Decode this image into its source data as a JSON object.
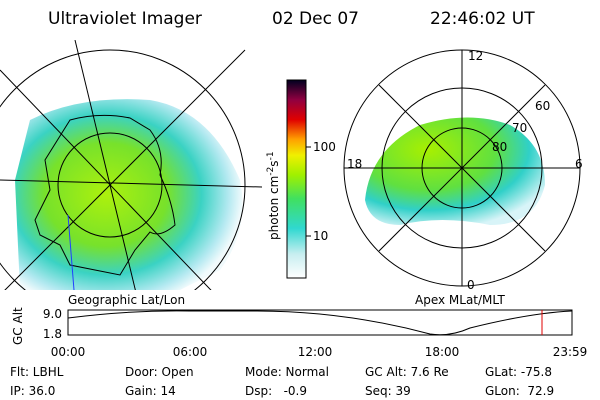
{
  "header": {
    "instrument": "Ultraviolet Imager",
    "date": "02 Dec 07",
    "time": "22:46:02 UT"
  },
  "left_map": {
    "label": "Geographic Lat/Lon"
  },
  "colorbar": {
    "unit": "photon cm",
    "exp1": "-2",
    "unit2": "s",
    "exp2": "-1",
    "ticks": [
      "100",
      "10"
    ]
  },
  "right_map": {
    "label": "Apex MLat/MLT",
    "mlt": [
      "12",
      "18",
      "6",
      "0"
    ],
    "mlat": [
      "60",
      "70",
      "80"
    ]
  },
  "orbit": {
    "axis_label": "GC Alt",
    "yticks": [
      "9.0",
      "1.8"
    ],
    "xticks": [
      "00:00",
      "06:00",
      "12:00",
      "18:00",
      "23:59"
    ]
  },
  "status": {
    "rows": [
      [
        "Flt: LBHL",
        "Door: Open",
        "Mode: Normal",
        "GC Alt: 7.6 Re",
        "GLat: -75.8"
      ],
      [
        "IP: 36.0",
        "Gain: 14",
        "Dsp:   -0.9",
        "Seq: 39",
        "GLon:  72.9"
      ]
    ]
  }
}
